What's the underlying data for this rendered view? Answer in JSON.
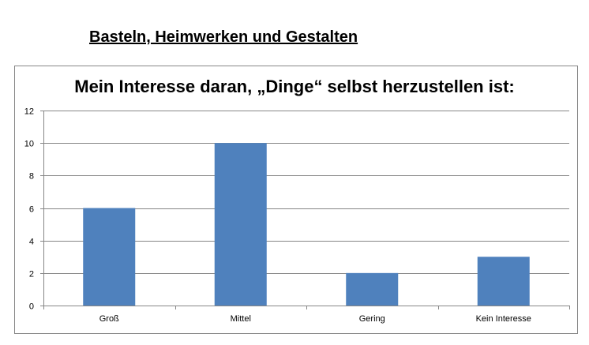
{
  "page": {
    "heading": "Basteln, Heimwerken und Gestalten"
  },
  "chart_data": {
    "type": "bar",
    "title": "Mein Interesse daran, „Dinge“ selbst herzustellen ist:",
    "categories": [
      "Groß",
      "Mittel",
      "Gering",
      "Kein Interesse"
    ],
    "values": [
      6,
      10,
      2,
      3
    ],
    "ylim": [
      0,
      12
    ],
    "yticks": [
      0,
      2,
      4,
      6,
      8,
      10,
      12
    ],
    "xlabel": "",
    "ylabel": "",
    "grid": true,
    "legend": "none",
    "bar_color": "#4f81bd",
    "grid_color": "#868686"
  }
}
